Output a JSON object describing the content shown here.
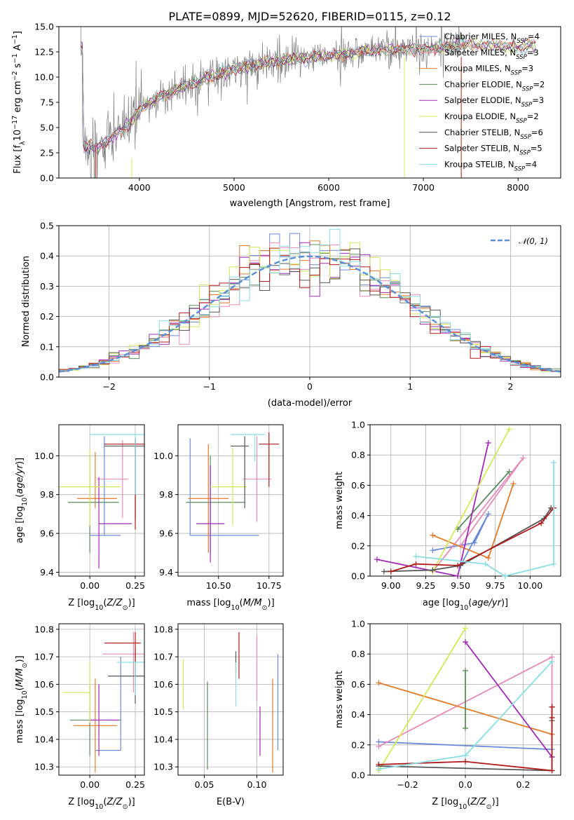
{
  "colors": {
    "Chabrier MILES": "#6a8bd8",
    "Salpeter MILES": "#e68ab8",
    "Kroupa MILES": "#e07b2a",
    "Chabrier ELODIE": "#5e8c5e",
    "Salpeter ELODIE": "#a02ab5",
    "Kroupa ELODIE": "#d4e857",
    "Chabrier STELIB": "#555555",
    "Salpeter STELIB": "#b01a1a",
    "Kroupa STELIB": "#88dde0"
  },
  "chart_data": [
    {
      "id": "spectrum",
      "type": "line",
      "title": "PLATE=0899, MJD=52620, FIBERID=0115, z=0.12",
      "xlabel": "wavelength [Angstrom, rest frame]",
      "ylabel": "Flux [fλ10⁻¹⁷ erg cm⁻² s⁻¹ A⁻¹]",
      "xlim": [
        3150,
        8450
      ],
      "ylim": [
        0,
        15
      ],
      "xticks": [
        "4000",
        "5000",
        "6000",
        "7000",
        "8000"
      ],
      "yticks": [
        "0.0",
        "2.5",
        "5.0",
        "7.5",
        "10.0",
        "12.5",
        "15.0"
      ],
      "legend_position": "right",
      "legend": [
        "Chabrier MILES, N_SSP=4",
        "Salpeter MILES, N_SSP=3",
        "Kroupa MILES, N_SSP=3",
        "Chabrier ELODIE, N_SSP=2",
        "Salpeter ELODIE, N_SSP=3",
        "Kroupa ELODIE, N_SSP=2",
        "Chabrier STELIB, N_SSP=6",
        "Salpeter STELIB, N_SSP=5",
        "Kroupa STELIB, N_SSP=4"
      ],
      "continuum": [
        [
          3400,
          3.2
        ],
        [
          3550,
          3.0
        ],
        [
          3700,
          4.0
        ],
        [
          3900,
          5.5
        ],
        [
          4000,
          6.8
        ],
        [
          4200,
          8.0
        ],
        [
          4500,
          9.2
        ],
        [
          5000,
          10.8
        ],
        [
          5500,
          11.7
        ],
        [
          6000,
          12.1
        ],
        [
          6500,
          12.7
        ],
        [
          7000,
          12.8
        ],
        [
          7500,
          13.2
        ],
        [
          8000,
          13.0
        ],
        [
          8200,
          13.2
        ]
      ],
      "observed_range": [
        3550,
        7450
      ]
    },
    {
      "id": "residuals",
      "type": "line",
      "xlabel": "(data-model)/error",
      "ylabel": "Normed distribution",
      "xlim": [
        -2.5,
        2.5
      ],
      "ylim": [
        0,
        0.5
      ],
      "xticks": [
        "−2",
        "−1",
        "0",
        "1",
        "2"
      ],
      "yticks": [
        "0.0",
        "0.1",
        "0.2",
        "0.3",
        "0.4",
        "0.5"
      ],
      "grid": true,
      "legend_position": "top-right",
      "legend": [
        "𝒩(0, 1)"
      ]
    },
    {
      "id": "age_vs_Z",
      "type": "scatter",
      "xlabel": "Z [log10(Z/Z⊙)]",
      "ylabel": "age  [log10(age/yr)]",
      "xlim": [
        -0.17,
        0.3
      ],
      "ylim": [
        9.38,
        10.16
      ],
      "xticks": [
        "0.00",
        "0.25"
      ],
      "yticks": [
        "9.4",
        "9.6",
        "9.8",
        "10.0"
      ],
      "grid": true,
      "points": [
        {
          "series": "Chabrier MILES",
          "x": 0.08,
          "xerr": [
            0.08,
            0.09
          ],
          "y": 9.59,
          "yerr": [
            0.0,
            0.51
          ]
        },
        {
          "series": "Salpeter MILES",
          "x": 0.18,
          "xerr": [
            0.14,
            0.03
          ],
          "y": 9.88,
          "yerr": [
            0.2,
            0.2
          ]
        },
        {
          "series": "Kroupa MILES",
          "x": 0.03,
          "xerr": [
            0.1,
            0.12
          ],
          "y": 9.78,
          "yerr": [
            0.05,
            0.24
          ]
        },
        {
          "series": "Chabrier ELODIE",
          "x": 0.0,
          "xerr": [
            0.12,
            0.16
          ],
          "y": 9.76,
          "yerr": [
            0.26,
            0.24
          ]
        },
        {
          "series": "Salpeter ELODIE",
          "x": 0.05,
          "xerr": [
            0.0,
            0.18
          ],
          "y": 9.65,
          "yerr": [
            0.23,
            0.24
          ]
        },
        {
          "series": "Kroupa ELODIE",
          "x": 0.0,
          "xerr": [
            0.17,
            0.17
          ],
          "y": 9.84,
          "yerr": [
            0.2,
            0.19
          ]
        },
        {
          "series": "Chabrier STELIB",
          "x": 0.25,
          "xerr": [
            0.17,
            0.05
          ],
          "y": 10.05,
          "yerr": [
            0.38,
            0.04
          ]
        },
        {
          "series": "Salpeter STELIB",
          "x": 0.25,
          "xerr": [
            0.17,
            0.05
          ],
          "y": 10.06,
          "yerr": [
            0.44,
            0.03
          ]
        },
        {
          "series": "Kroupa STELIB",
          "x": 0.25,
          "xerr": [
            0.25,
            0.05
          ],
          "y": 10.11,
          "yerr": [
            0.31,
            0.0
          ]
        }
      ]
    },
    {
      "id": "age_vs_mass",
      "type": "scatter",
      "xlabel": "mass [log10(M/M⊙)]",
      "ylabel": "",
      "xlim": [
        10.3,
        10.82
      ],
      "ylim": [
        9.38,
        10.16
      ],
      "xticks": [
        "10.50",
        "10.75"
      ],
      "yticks": [
        "9.4",
        "9.6",
        "9.8",
        "10.0"
      ],
      "grid": true,
      "points": [
        {
          "series": "Chabrier MILES",
          "x": 10.36,
          "xerr": [
            0.0,
            0.34
          ],
          "y": 9.59,
          "yerr": [
            0.0,
            0.5
          ]
        },
        {
          "series": "Salpeter MILES",
          "x": 10.69,
          "xerr": [
            0.07,
            0.07
          ],
          "y": 9.88,
          "yerr": [
            0.22,
            0.22
          ]
        },
        {
          "series": "Kroupa MILES",
          "x": 10.45,
          "xerr": [
            0.1,
            0.1
          ],
          "y": 9.78,
          "yerr": [
            0.28,
            0.28
          ]
        },
        {
          "series": "Chabrier ELODIE",
          "x": 10.46,
          "xerr": [
            0.12,
            0.17
          ],
          "y": 9.76,
          "yerr": [
            0.26,
            0.24
          ]
        },
        {
          "series": "Salpeter ELODIE",
          "x": 10.46,
          "xerr": [
            0.07,
            0.07
          ],
          "y": 9.65,
          "yerr": [
            0.2,
            0.3
          ]
        },
        {
          "series": "Kroupa ELODIE",
          "x": 10.57,
          "xerr": [
            0.11,
            0.07
          ],
          "y": 9.84,
          "yerr": [
            0.2,
            0.2
          ]
        },
        {
          "series": "Chabrier STELIB",
          "x": 10.63,
          "xerr": [
            0.07,
            0.02
          ],
          "y": 10.05,
          "yerr": [
            0.32,
            0.05
          ]
        },
        {
          "series": "Salpeter STELIB",
          "x": 10.75,
          "xerr": [
            0.05,
            0.05
          ],
          "y": 10.06,
          "yerr": [
            0.22,
            0.06
          ]
        },
        {
          "series": "Kroupa STELIB",
          "x": 10.68,
          "xerr": [
            0.12,
            0.05
          ],
          "y": 10.11,
          "yerr": [
            0.14,
            0.0
          ]
        }
      ]
    },
    {
      "id": "weight_vs_age",
      "type": "line",
      "xlabel": "age  [log10(age/yr)]",
      "ylabel": "mass weight",
      "xlim": [
        8.85,
        10.22
      ],
      "ylim": [
        0,
        1
      ],
      "xticks": [
        "9.00",
        "9.25",
        "9.50",
        "9.75",
        "10.00"
      ],
      "yticks": [
        "0.0",
        "0.2",
        "0.4",
        "0.6",
        "0.8",
        "1.0"
      ],
      "grid": true,
      "series": [
        {
          "name": "Chabrier MILES",
          "x": [
            9.3,
            9.6,
            9.7,
            9.5
          ],
          "y": [
            0.17,
            0.22,
            0.41,
            0.07
          ]
        },
        {
          "name": "Salpeter MILES",
          "x": [
            9.3,
            9.95,
            9.5
          ],
          "y": [
            0.03,
            0.78,
            0.2
          ]
        },
        {
          "name": "Kroupa MILES",
          "x": [
            9.3,
            9.7,
            9.88
          ],
          "y": [
            0.27,
            0.12,
            0.61
          ]
        },
        {
          "name": "Chabrier ELODIE",
          "x": [
            9.48,
            9.85
          ],
          "y": [
            0.31,
            0.69
          ]
        },
        {
          "name": "Salpeter ELODIE",
          "x": [
            8.9,
            9.48,
            9.7
          ],
          "y": [
            0.11,
            0.0,
            0.88
          ]
        },
        {
          "name": "Kroupa ELODIE",
          "x": [
            9.3,
            9.85
          ],
          "y": [
            0.03,
            0.97
          ]
        },
        {
          "name": "Chabrier STELIB",
          "x": [
            8.95,
            9.3,
            9.5,
            10.1,
            10.15
          ],
          "y": [
            0.03,
            0.04,
            0.07,
            0.38,
            0.45
          ]
        },
        {
          "name": "Salpeter STELIB",
          "x": [
            9.0,
            9.18,
            9.48,
            10.08,
            10.17
          ],
          "y": [
            0.03,
            0.08,
            0.07,
            0.35,
            0.45
          ]
        },
        {
          "name": "Kroupa STELIB",
          "x": [
            9.18,
            9.68,
            9.82,
            10.17,
            10.17
          ],
          "y": [
            0.13,
            0.08,
            0.0,
            0.08,
            0.75
          ]
        }
      ]
    },
    {
      "id": "mass_vs_Z",
      "type": "scatter",
      "xlabel": "Z [log10(Z/Z⊙)]",
      "ylabel": "mass [log10(M/M⊙)]",
      "xlim": [
        -0.17,
        0.3
      ],
      "ylim": [
        10.27,
        10.82
      ],
      "xticks": [
        "0.00",
        "0.25"
      ],
      "yticks": [
        "10.3",
        "10.4",
        "10.5",
        "10.6",
        "10.7",
        "10.8"
      ],
      "grid": true,
      "points": [
        {
          "series": "Chabrier MILES",
          "x": 0.17,
          "xerr": [
            0.14,
            0.0
          ],
          "y": 10.36,
          "yerr": [
            0.0,
            0.34
          ]
        },
        {
          "series": "Salpeter MILES",
          "x": 0.24,
          "xerr": [
            0.17,
            0.06
          ],
          "y": 10.71,
          "yerr": [
            0.14,
            0.08
          ]
        },
        {
          "series": "Kroupa MILES",
          "x": 0.03,
          "xerr": [
            0.12,
            0.12
          ],
          "y": 10.45,
          "yerr": [
            0.17,
            0.17
          ]
        },
        {
          "series": "Chabrier ELODIE",
          "x": 0.0,
          "xerr": [
            0.11,
            0.17
          ],
          "y": 10.47,
          "yerr": [
            0.13,
            0.13
          ]
        },
        {
          "series": "Salpeter ELODIE",
          "x": 0.05,
          "xerr": [
            0.05,
            0.11
          ],
          "y": 10.47,
          "yerr": [
            0.13,
            0.13
          ]
        },
        {
          "series": "Kroupa ELODIE",
          "x": 0.0,
          "xerr": [
            0.15,
            0.0
          ],
          "y": 10.57,
          "yerr": [
            0.11,
            0.11
          ]
        },
        {
          "series": "Chabrier STELIB",
          "x": 0.25,
          "xerr": [
            0.15,
            0.05
          ],
          "y": 10.63,
          "yerr": [
            0.1,
            0.1
          ]
        },
        {
          "series": "Salpeter STELIB",
          "x": 0.25,
          "xerr": [
            0.17,
            0.03
          ],
          "y": 10.75,
          "yerr": [
            0.12,
            0.04
          ]
        },
        {
          "series": "Kroupa STELIB",
          "x": 0.25,
          "xerr": [
            0.1,
            0.05
          ],
          "y": 10.68,
          "yerr": [
            0.12,
            0.0
          ]
        }
      ]
    },
    {
      "id": "mass_vs_ebv",
      "type": "scatter",
      "xlabel": "E(B-V)",
      "ylabel": "",
      "xlim": [
        0.025,
        0.125
      ],
      "ylim": [
        10.27,
        10.82
      ],
      "xticks": [
        "0.05",
        "0.10"
      ],
      "yticks": [
        "10.3",
        "10.4",
        "10.5",
        "10.6",
        "10.7",
        "10.8"
      ],
      "grid": true,
      "points": [
        {
          "series": "Chabrier MILES",
          "x": 0.12,
          "y": 10.53,
          "yerr": [
            0.17,
            0.18
          ]
        },
        {
          "series": "Salpeter MILES",
          "x": 0.1,
          "y": 10.66,
          "yerr": [
            0.12,
            0.12
          ]
        },
        {
          "series": "Kroupa MILES",
          "x": 0.115,
          "y": 10.44,
          "yerr": [
            0.16,
            0.18
          ]
        },
        {
          "series": "Chabrier ELODIE",
          "x": 0.053,
          "y": 10.45,
          "yerr": [
            0.16,
            0.16
          ]
        },
        {
          "series": "Salpeter ELODIE",
          "x": 0.103,
          "y": 10.43,
          "yerr": [
            0.09,
            0.09
          ]
        },
        {
          "series": "Kroupa ELODIE",
          "x": 0.03,
          "y": 10.6,
          "yerr": [
            0.09,
            0.09
          ]
        },
        {
          "series": "Chabrier STELIB",
          "x": 0.08,
          "y": 10.68,
          "yerr": [
            0.04,
            0.04
          ]
        },
        {
          "series": "Salpeter STELIB",
          "x": 0.083,
          "y": 10.71,
          "yerr": [
            0.09,
            0.08
          ]
        },
        {
          "series": "Kroupa STELIB",
          "x": 0.08,
          "y": 10.6,
          "yerr": [
            0.08,
            0.08
          ]
        }
      ]
    },
    {
      "id": "weight_vs_Z",
      "type": "line",
      "xlabel": "Z [log10(Z/Z⊙)]",
      "ylabel": "mass weight",
      "xlim": [
        -0.33,
        0.33
      ],
      "ylim": [
        0,
        1
      ],
      "xticks": [
        "−0.2",
        "0.0",
        "0.2"
      ],
      "yticks": [
        "0.0",
        "0.2",
        "0.4",
        "0.6",
        "0.8",
        "1.0"
      ],
      "grid": true,
      "series": [
        {
          "name": "Chabrier MILES",
          "x": [
            -0.3,
            0.3
          ],
          "y": [
            0.22,
            0.17
          ]
        },
        {
          "name": "Salpeter MILES",
          "x": [
            -0.3,
            0.3,
            0.3
          ],
          "y": [
            0.19,
            0.78,
            0.12
          ]
        },
        {
          "name": "Kroupa MILES",
          "x": [
            -0.3,
            0.3
          ],
          "y": [
            0.61,
            0.27
          ]
        },
        {
          "name": "Chabrier ELODIE",
          "x": [
            0.0,
            0.0
          ],
          "y": [
            0.31,
            0.69
          ]
        },
        {
          "name": "Salpeter ELODIE",
          "x": [
            0.0,
            0.3
          ],
          "y": [
            0.88,
            0.12
          ]
        },
        {
          "name": "Kroupa ELODIE",
          "x": [
            -0.3,
            0.0
          ],
          "y": [
            0.03,
            0.97
          ]
        },
        {
          "name": "Chabrier STELIB",
          "x": [
            -0.3,
            0.3,
            0.3,
            0.3
          ],
          "y": [
            0.06,
            0.03,
            0.36,
            0.45
          ]
        },
        {
          "name": "Salpeter STELIB",
          "x": [
            -0.3,
            0.0,
            0.3,
            0.3,
            0.3
          ],
          "y": [
            0.07,
            0.09,
            0.03,
            0.38,
            0.45
          ]
        },
        {
          "name": "Kroupa STELIB",
          "x": [
            -0.3,
            0.0,
            0.3
          ],
          "y": [
            0.04,
            0.13,
            0.75
          ]
        }
      ]
    }
  ]
}
